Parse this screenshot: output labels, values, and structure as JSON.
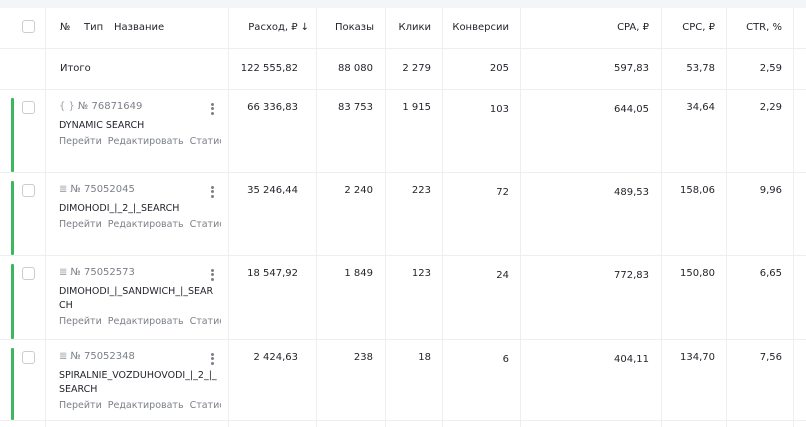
{
  "header": {
    "num": "№",
    "type": "Тип",
    "name": "Название",
    "cost": "Расход, ₽",
    "cost_sort": "↓",
    "impressions": "Показы",
    "clicks": "Клики",
    "conversions": "Конверсии",
    "cpa": "CPA, ₽",
    "cpc": "CPC, ₽",
    "ctr": "CTR, %"
  },
  "total": {
    "label": "Итого",
    "cost": "122 555,82",
    "impressions": "88 080",
    "clicks": "2 279",
    "conversions": "205",
    "cpa": "597,83",
    "cpc": "53,78",
    "ctr": "2,59"
  },
  "campaigns": [
    {
      "type_icon": "dynamic-campaign-icon",
      "id": "№ 76871649",
      "name": "DYNAMIC SEARCH",
      "actions": [
        "Перейти",
        "Редактировать",
        "Статистика"
      ],
      "status_color": "#3cb85c",
      "cost": "66 336,83",
      "impressions": "83 753",
      "clicks": "1 915",
      "conversions": "103",
      "cpa": "644,05",
      "cpc": "34,64",
      "ctr": "2,29"
    },
    {
      "type_icon": "text-campaign-icon",
      "id": "№ 75052045",
      "name": "DIMOHODI_|_2_|_SEARCH",
      "actions": [
        "Перейти",
        "Редактировать",
        "Статистика"
      ],
      "status_color": "#3cb85c",
      "cost": "35 246,44",
      "impressions": "2 240",
      "clicks": "223",
      "conversions": "72",
      "cpa": "489,53",
      "cpc": "158,06",
      "ctr": "9,96"
    },
    {
      "type_icon": "text-campaign-icon",
      "id": "№ 75052573",
      "name": "DIMOHODI_|_SANDWICH_|_SEARCH",
      "actions": [
        "Перейти",
        "Редактировать",
        "Статистика"
      ],
      "status_color": "#3cb85c",
      "cost": "18 547,92",
      "impressions": "1 849",
      "clicks": "123",
      "conversions": "24",
      "cpa": "772,83",
      "cpc": "150,80",
      "ctr": "6,65"
    },
    {
      "type_icon": "text-campaign-icon",
      "id": "№ 75052348",
      "name": "SPIRALNIE_VOZDUHOVODI_|_2_|_SEARCH",
      "actions": [
        "Перейти",
        "Редактировать",
        "Статистика"
      ],
      "status_color": "#3cb85c",
      "cost": "2 424,63",
      "impressions": "238",
      "clicks": "18",
      "conversions": "6",
      "cpa": "404,11",
      "cpc": "134,70",
      "ctr": "7,56"
    }
  ]
}
